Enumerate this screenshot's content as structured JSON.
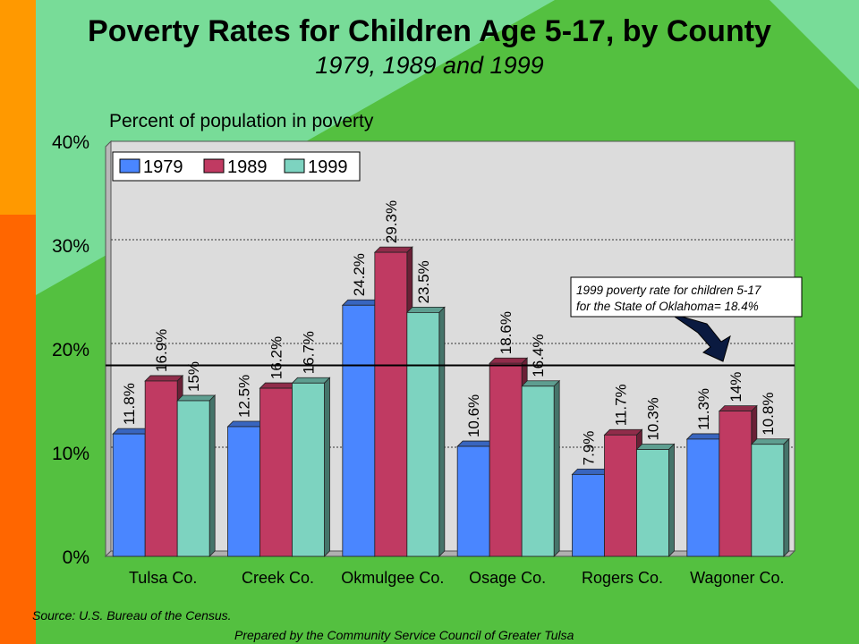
{
  "page": {
    "title": "Poverty Rates for Children Age 5-17, by County",
    "subtitle": "1979, 1989 and 1999",
    "source": "Source:  U.S. Bureau of the Census.",
    "prepared_by": "Prepared by the Community Service Council of Greater Tulsa"
  },
  "chart_data": {
    "type": "bar",
    "title": "Poverty Rates for Children Age 5-17, by County",
    "subtitle": "1979, 1989 and 1999",
    "ylabel": "Percent of population in poverty",
    "xlabel": "",
    "ylim": [
      0,
      40
    ],
    "yticks": [
      "0%",
      "10%",
      "20%",
      "30%",
      "40%"
    ],
    "grid": true,
    "legend_position": "top-left",
    "categories": [
      "Tulsa Co.",
      "Creek Co.",
      "Okmulgee Co.",
      "Osage Co.",
      "Rogers Co.",
      "Wagoner Co."
    ],
    "series": [
      {
        "name": "1979",
        "color": "#4a86ff",
        "values": [
          11.8,
          12.5,
          24.2,
          10.6,
          7.9,
          11.3
        ],
        "labels": [
          "11.8%",
          "12.5%",
          "24.2%",
          "10.6%",
          "7.9%",
          "11.3%"
        ]
      },
      {
        "name": "1989",
        "color": "#c03a62",
        "values": [
          16.9,
          16.2,
          29.3,
          18.6,
          11.7,
          14
        ],
        "labels": [
          "16.9%",
          "16.2%",
          "29.3%",
          "18.6%",
          "11.7%",
          "14%"
        ]
      },
      {
        "name": "1999",
        "color": "#7dd3c0",
        "values": [
          15,
          16.7,
          23.5,
          16.4,
          10.3,
          10.8
        ],
        "labels": [
          "15%",
          "16.7%",
          "23.5%",
          "16.4%",
          "10.3%",
          "10.8%"
        ]
      }
    ],
    "reference_line": {
      "value": 18.4
    },
    "annotation": {
      "line1": "1999 poverty rate for children 5-17",
      "line2": "for the State of Oklahoma= 18.4%"
    }
  }
}
